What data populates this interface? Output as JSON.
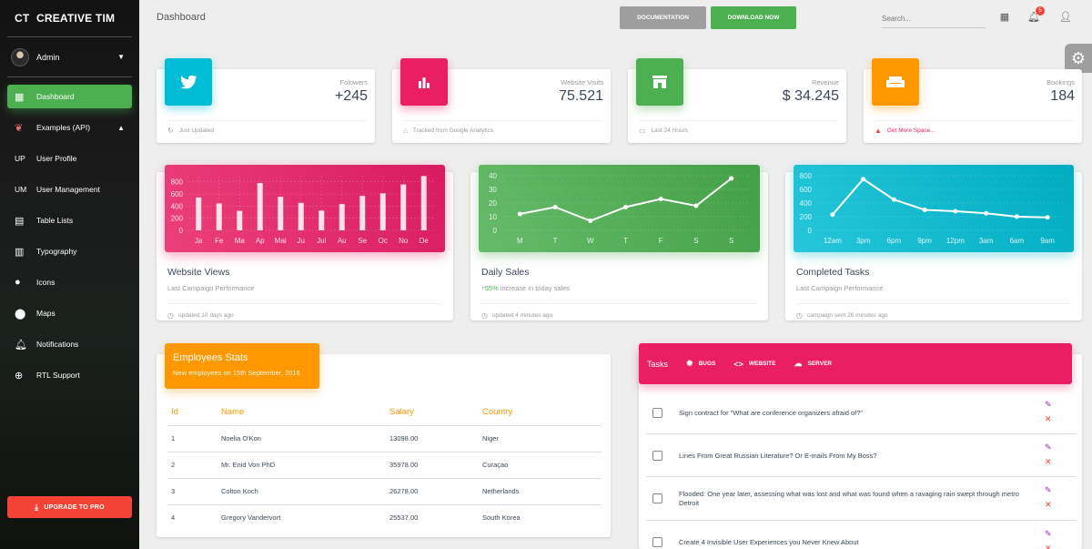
{
  "brand": {
    "mini": "CT",
    "name": "CREATIVE TIM"
  },
  "user": {
    "name": "Admin"
  },
  "sidebar": {
    "items": [
      {
        "icon": "dashboard-icon",
        "label": "Dashboard"
      },
      {
        "icon": "examples-icon",
        "label": "Examples (API)"
      },
      {
        "abbr": "UP",
        "label": "User Profile"
      },
      {
        "abbr": "UM",
        "label": "User Management"
      },
      {
        "icon": "clipboard-icon",
        "label": "Table Lists"
      },
      {
        "icon": "library-books-icon",
        "label": "Typography"
      },
      {
        "icon": "bubble-chart-icon",
        "label": "Icons"
      },
      {
        "icon": "location-icon",
        "label": "Maps"
      },
      {
        "icon": "bell-icon",
        "label": "Notifications"
      },
      {
        "icon": "language-icon",
        "label": "RTL Support"
      }
    ],
    "upgrade_label": "UPGRADE TO PRO"
  },
  "topbar": {
    "title": "Dashboard",
    "doc_label": "DOCUMENTATION",
    "download_label": "DOWNLOAD NOW",
    "search_placeholder": "Search...",
    "notif_count": "5"
  },
  "stats": [
    {
      "category": "Folowers",
      "value": "+245",
      "footer": "Just Updated",
      "color": "#00bcd4",
      "icon": "twitter-icon"
    },
    {
      "category": "Website Visits",
      "value": "75.521",
      "footer": "Tracked from Google Analytics",
      "color": "#e91e63",
      "icon": "bar-chart-icon"
    },
    {
      "category": "Revenue",
      "value": "$ 34.245",
      "footer": "Last 24 Hours",
      "color": "#4caf50",
      "icon": "store-icon"
    },
    {
      "category": "Bookings",
      "value": "184",
      "footer": "Get More Space...",
      "color": "#ff9800",
      "icon": "weekend-icon"
    }
  ],
  "charts": [
    {
      "title": "Website Views",
      "subtitle": "Last Campaign Performance",
      "footer": "updated 10 days ago"
    },
    {
      "title": "Daily Sales",
      "subtitle_up": "55%",
      "subtitle_rest": " increase in today sales",
      "footer": "updated 4 minutes ago"
    },
    {
      "title": "Completed Tasks",
      "subtitle": "Last Campaign Performance",
      "footer": "campaign sent 26 minutes ago"
    }
  ],
  "chart_data": [
    {
      "type": "bar",
      "categories": [
        "Ja",
        "Fe",
        "Ma",
        "Ap",
        "Mai",
        "Ju",
        "Jul",
        "Au",
        "Se",
        "Oc",
        "No",
        "De"
      ],
      "values": [
        542,
        443,
        320,
        780,
        553,
        453,
        326,
        434,
        568,
        610,
        756,
        895
      ],
      "ylim": [
        0,
        900
      ],
      "yticks": [
        0,
        200,
        400,
        600,
        800
      ],
      "color": "#e91e63"
    },
    {
      "type": "line",
      "categories": [
        "M",
        "T",
        "W",
        "T",
        "F",
        "S",
        "S"
      ],
      "values": [
        12,
        17,
        7,
        17,
        23,
        18,
        38
      ],
      "ylim": [
        0,
        40
      ],
      "yticks": [
        0,
        10,
        20,
        30,
        40
      ],
      "color": "#4caf50"
    },
    {
      "type": "line",
      "categories": [
        "12am",
        "3pm",
        "6pm",
        "9pm",
        "12pm",
        "3am",
        "6am",
        "9am"
      ],
      "values": [
        230,
        750,
        450,
        300,
        280,
        250,
        200,
        190
      ],
      "ylim": [
        0,
        800
      ],
      "yticks": [
        0,
        200,
        400,
        600,
        800
      ],
      "color": "#00bcd4"
    }
  ],
  "employees": {
    "title": "Employees Stats",
    "subtitle": "New employees on 15th September, 2016",
    "headers": [
      "Id",
      "Name",
      "Salary",
      "Country"
    ],
    "rows": [
      [
        "1",
        "Noelia O'Kon",
        "13098.00",
        "Niger"
      ],
      [
        "2",
        "Mr. Enid Von PhD",
        "35978.00",
        "Curaçao"
      ],
      [
        "3",
        "Colton Koch",
        "26278.00",
        "Netherlands"
      ],
      [
        "4",
        "Gregory Vandervort",
        "25537.00",
        "South Korea"
      ]
    ]
  },
  "tasks": {
    "label": "Tasks",
    "tabs": [
      {
        "icon": "bug-icon",
        "label": "BUGS"
      },
      {
        "icon": "code-icon",
        "label": "WEBSITE"
      },
      {
        "icon": "cloud-icon",
        "label": "SERVER"
      }
    ],
    "items": [
      "Sign contract for \"What are conference organizers afraid of?\"",
      "Lines From Great Russian Literature? Or E-mails From My Boss?",
      "Flooded: One year later, assessing what was lost and what was found when a ravaging rain swept through metro Detroit",
      "Create 4 Invisible User Experiences you Never Knew About"
    ]
  }
}
